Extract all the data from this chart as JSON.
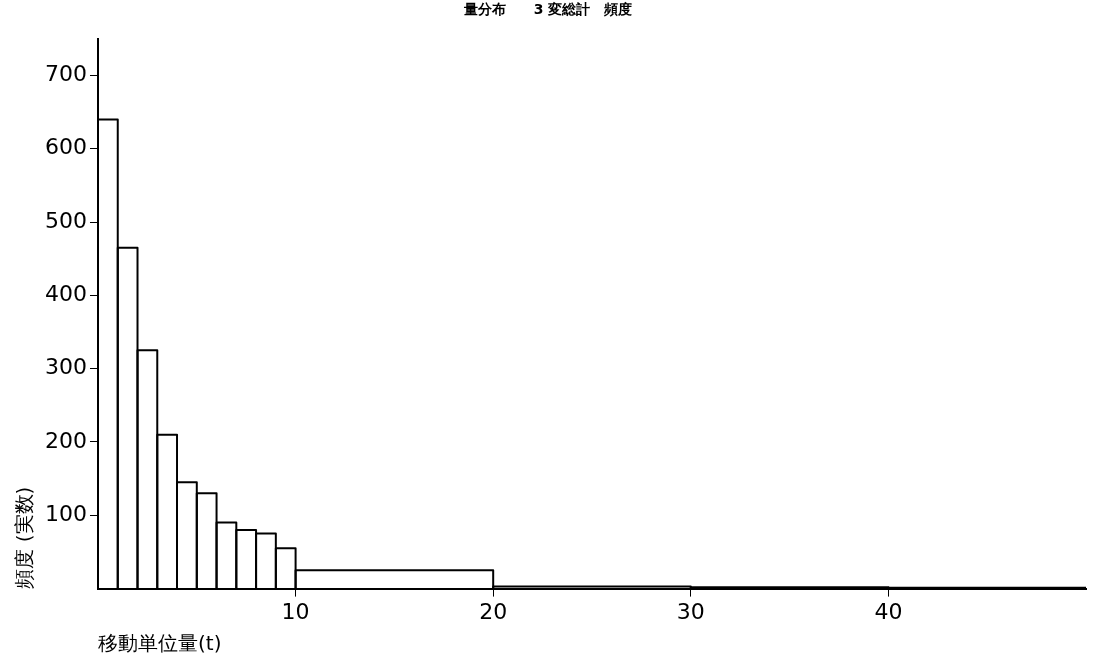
{
  "chart_data": {
    "type": "histogram",
    "title": "量分布　　3 変総計　頻度",
    "xlabel": "移動単位量(t)",
    "ylabel": "頻度 (実数)",
    "bins": [
      0,
      1,
      2,
      3,
      4,
      5,
      6,
      7,
      8,
      9,
      10,
      20,
      30,
      40,
      50
    ],
    "values": [
      640,
      465,
      325,
      210,
      145,
      130,
      90,
      80,
      75,
      55,
      25,
      3,
      2,
      1
    ],
    "color": "#000000",
    "xlim": [
      0,
      50
    ],
    "xticks": [
      10,
      20,
      30,
      40
    ],
    "ylim": [
      0,
      750
    ],
    "yticks": [
      100,
      200,
      300,
      400,
      500,
      600,
      700
    ],
    "grid": false,
    "legend": false
  }
}
